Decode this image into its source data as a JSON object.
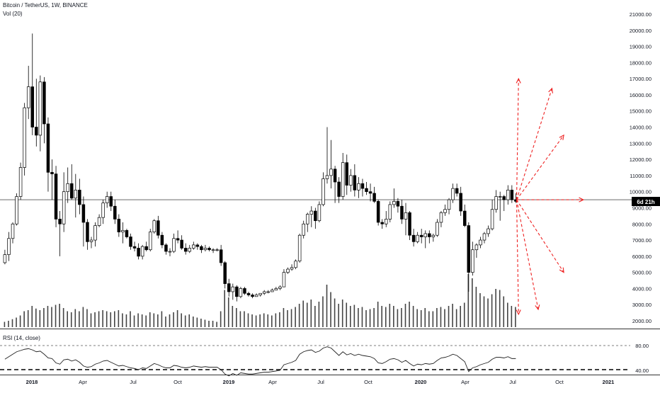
{
  "header": {
    "title": "Bitcoin / TetherUS, 1W, BINANCE",
    "volume_label": "Vol (20)"
  },
  "rsi_panel": {
    "label": "RSI (14, close)",
    "ticks": [
      "80.00",
      "40.00"
    ]
  },
  "price_badge": {
    "text": "6d 21h",
    "bg": "#000000",
    "fg": "#ffffff"
  },
  "colors": {
    "up": "#ffffff",
    "down": "#000000",
    "wick": "#000000",
    "projection": "#ee2222",
    "grid": "#9aa0a6"
  },
  "chart_data": {
    "type": "candlestick",
    "y_axis_ticks": [
      "21000.00",
      "20000.00",
      "19000.00",
      "18000.00",
      "17000.00",
      "16000.00",
      "15000.00",
      "14000.00",
      "13000.00",
      "12000.00",
      "11000.00",
      "10000.00",
      "9000.00",
      "8000.00",
      "7000.00",
      "6000.00",
      "5000.00",
      "4000.00",
      "3000.00",
      "2000.00"
    ],
    "y_range": [
      1600,
      21200
    ],
    "x_axis_labels": [
      "2018",
      "Apr",
      "Jul",
      "Oct",
      "2019",
      "Apr",
      "Jul",
      "Oct",
      "2020",
      "Apr",
      "Jul",
      "Oct",
      "2021"
    ],
    "current_price": 9500,
    "ohlc_weekly": [
      [
        5600,
        6400,
        5500,
        6100
      ],
      [
        6100,
        7500,
        5700,
        7100
      ],
      [
        7100,
        8100,
        6800,
        8000
      ],
      [
        8000,
        9900,
        7900,
        9700
      ],
      [
        9700,
        11800,
        9500,
        11500
      ],
      [
        11500,
        15500,
        11000,
        15200
      ],
      [
        15200,
        17800,
        14500,
        16500
      ],
      [
        16500,
        19800,
        13500,
        14000
      ],
      [
        14000,
        17000,
        12800,
        13500
      ],
      [
        13500,
        17200,
        12500,
        16800
      ],
      [
        16800,
        17100,
        13000,
        14200
      ],
      [
        14200,
        14600,
        10000,
        11200
      ],
      [
        11200,
        12000,
        9500,
        11100
      ],
      [
        11100,
        11600,
        7800,
        8300
      ],
      [
        8300,
        8800,
        6000,
        8000
      ],
      [
        8000,
        11200,
        7500,
        10000
      ],
      [
        10000,
        11500,
        9300,
        10500
      ],
      [
        10500,
        11700,
        9500,
        9600
      ],
      [
        9600,
        11100,
        8400,
        10100
      ],
      [
        10100,
        10800,
        8600,
        9200
      ],
      [
        9200,
        9700,
        6600,
        8100
      ],
      [
        8100,
        8300,
        6400,
        6900
      ],
      [
        6900,
        7200,
        6500,
        7000
      ],
      [
        7000,
        8100,
        6600,
        7900
      ],
      [
        7900,
        8600,
        7800,
        8400
      ],
      [
        8400,
        9500,
        8000,
        9300
      ],
      [
        9300,
        10000,
        9000,
        9700
      ],
      [
        9700,
        10000,
        8800,
        9100
      ],
      [
        9100,
        9500,
        8000,
        8300
      ],
      [
        8300,
        8600,
        7200,
        7500
      ],
      [
        7500,
        8100,
        6800,
        7600
      ],
      [
        7600,
        7700,
        7100,
        7200
      ],
      [
        7200,
        7400,
        6400,
        6600
      ],
      [
        6600,
        6900,
        6300,
        6500
      ],
      [
        6500,
        6800,
        5800,
        6000
      ],
      [
        6000,
        6700,
        5800,
        6600
      ],
      [
        6600,
        6900,
        6300,
        6400
      ],
      [
        6400,
        7700,
        6300,
        7500
      ],
      [
        7500,
        8300,
        7400,
        8200
      ],
      [
        8200,
        8500,
        7100,
        7300
      ],
      [
        7300,
        7500,
        6500,
        6700
      ],
      [
        6700,
        6800,
        6100,
        6300
      ],
      [
        6300,
        6500,
        6000,
        6300
      ],
      [
        6300,
        7400,
        6200,
        7100
      ],
      [
        7100,
        7600,
        6800,
        7000
      ],
      [
        7000,
        7300,
        6400,
        6500
      ],
      [
        6500,
        6800,
        6100,
        6300
      ],
      [
        6300,
        6700,
        6200,
        6500
      ],
      [
        6500,
        6900,
        6400,
        6700
      ],
      [
        6700,
        6800,
        6400,
        6600
      ],
      [
        6600,
        6700,
        6200,
        6400
      ],
      [
        6400,
        6700,
        6300,
        6500
      ],
      [
        6500,
        6600,
        6300,
        6400
      ],
      [
        6400,
        6500,
        6200,
        6400
      ],
      [
        6400,
        6500,
        6300,
        6400
      ],
      [
        6400,
        6700,
        5400,
        5600
      ],
      [
        5600,
        5700,
        4000,
        4300
      ],
      [
        4300,
        4600,
        3500,
        3800
      ],
      [
        3800,
        4300,
        3300,
        4100
      ],
      [
        4100,
        4200,
        3200,
        3500
      ],
      [
        3500,
        4100,
        3400,
        4000
      ],
      [
        4000,
        4100,
        3600,
        3700
      ],
      [
        3700,
        3800,
        3500,
        3600
      ],
      [
        3600,
        3700,
        3400,
        3500
      ],
      [
        3500,
        3700,
        3500,
        3600
      ],
      [
        3600,
        3700,
        3500,
        3700
      ],
      [
        3700,
        3900,
        3600,
        3800
      ],
      [
        3800,
        3900,
        3700,
        3800
      ],
      [
        3800,
        4000,
        3800,
        3900
      ],
      [
        3900,
        4100,
        3900,
        4000
      ],
      [
        4000,
        4200,
        3900,
        4100
      ],
      [
        4100,
        5200,
        4100,
        5000
      ],
      [
        5000,
        5300,
        4900,
        5200
      ],
      [
        5200,
        5500,
        5100,
        5300
      ],
      [
        5300,
        5800,
        5200,
        5700
      ],
      [
        5700,
        7400,
        5600,
        7300
      ],
      [
        7300,
        8200,
        7100,
        8000
      ],
      [
        8000,
        8700,
        7500,
        8600
      ],
      [
        8600,
        9100,
        7800,
        8800
      ],
      [
        8800,
        9000,
        7700,
        8200
      ],
      [
        8200,
        9400,
        8100,
        9200
      ],
      [
        9200,
        11200,
        9100,
        10800
      ],
      [
        10800,
        14000,
        10500,
        11000
      ],
      [
        11000,
        13200,
        10200,
        11400
      ],
      [
        11400,
        11600,
        9300,
        10600
      ],
      [
        10600,
        10900,
        9300,
        9700
      ],
      [
        9700,
        12400,
        9500,
        11800
      ],
      [
        11800,
        12300,
        9800,
        10400
      ],
      [
        10400,
        11400,
        10000,
        11000
      ],
      [
        11000,
        11700,
        9700,
        10100
      ],
      [
        10100,
        10900,
        9600,
        10500
      ],
      [
        10500,
        10800,
        9700,
        10200
      ],
      [
        10200,
        10600,
        9800,
        10000
      ],
      [
        10000,
        10500,
        9400,
        9900
      ],
      [
        9900,
        10300,
        9300,
        9400
      ],
      [
        9400,
        9500,
        7900,
        8100
      ],
      [
        8100,
        8300,
        7700,
        8000
      ],
      [
        8000,
        8800,
        7800,
        8300
      ],
      [
        8300,
        9400,
        8100,
        9200
      ],
      [
        9200,
        10200,
        9000,
        9400
      ],
      [
        9400,
        9600,
        8700,
        9100
      ],
      [
        9100,
        9500,
        8000,
        8300
      ],
      [
        8300,
        9300,
        7300,
        8700
      ],
      [
        8700,
        8800,
        7000,
        7300
      ],
      [
        7300,
        7700,
        6600,
        6900
      ],
      [
        6900,
        7500,
        6800,
        7300
      ],
      [
        7300,
        7700,
        6800,
        7200
      ],
      [
        7200,
        7600,
        6500,
        7400
      ],
      [
        7400,
        7600,
        6800,
        7200
      ],
      [
        7200,
        7400,
        6900,
        7300
      ],
      [
        7300,
        8300,
        7200,
        8100
      ],
      [
        8100,
        8800,
        7800,
        8700
      ],
      [
        8700,
        9200,
        8500,
        8900
      ],
      [
        8900,
        9600,
        8600,
        9500
      ],
      [
        9500,
        10500,
        9300,
        10200
      ],
      [
        10200,
        10500,
        9700,
        9900
      ],
      [
        9900,
        10300,
        8500,
        8800
      ],
      [
        8800,
        9200,
        7800,
        7900
      ],
      [
        7900,
        8100,
        3800,
        5000
      ],
      [
        5000,
        6900,
        4800,
        6400
      ],
      [
        6400,
        6800,
        5900,
        6700
      ],
      [
        6700,
        7200,
        6500,
        7000
      ],
      [
        7000,
        7500,
        6800,
        7400
      ],
      [
        7400,
        7900,
        7200,
        7700
      ],
      [
        7700,
        9500,
        7600,
        8900
      ],
      [
        8900,
        10100,
        8700,
        9700
      ],
      [
        9700,
        10000,
        8200,
        9700
      ],
      [
        9700,
        9800,
        8800,
        9500
      ],
      [
        9500,
        10400,
        9200,
        10100
      ],
      [
        10100,
        10400,
        9300,
        9500
      ],
      [
        9500,
        9900,
        9300,
        9400
      ]
    ],
    "volume_weekly": [
      0.1,
      0.12,
      0.15,
      0.18,
      0.22,
      0.3,
      0.32,
      0.4,
      0.35,
      0.32,
      0.36,
      0.4,
      0.38,
      0.42,
      0.44,
      0.36,
      0.3,
      0.28,
      0.34,
      0.3,
      0.38,
      0.34,
      0.26,
      0.28,
      0.3,
      0.32,
      0.3,
      0.28,
      0.3,
      0.32,
      0.26,
      0.24,
      0.3,
      0.22,
      0.26,
      0.24,
      0.22,
      0.28,
      0.26,
      0.24,
      0.3,
      0.2,
      0.24,
      0.28,
      0.32,
      0.26,
      0.22,
      0.24,
      0.2,
      0.18,
      0.16,
      0.14,
      0.12,
      0.12,
      0.1,
      0.3,
      0.7,
      0.56,
      0.4,
      0.36,
      0.3,
      0.3,
      0.26,
      0.24,
      0.22,
      0.24,
      0.26,
      0.24,
      0.22,
      0.26,
      0.28,
      0.36,
      0.32,
      0.34,
      0.38,
      0.44,
      0.5,
      0.46,
      0.52,
      0.4,
      0.48,
      0.58,
      0.8,
      0.66,
      0.54,
      0.44,
      0.52,
      0.46,
      0.4,
      0.42,
      0.36,
      0.38,
      0.32,
      0.34,
      0.36,
      0.48,
      0.4,
      0.38,
      0.44,
      0.4,
      0.34,
      0.36,
      0.44,
      0.48,
      0.4,
      0.34,
      0.32,
      0.36,
      0.3,
      0.3,
      0.36,
      0.38,
      0.34,
      0.4,
      0.44,
      0.34,
      0.4,
      0.46,
      1.0,
      0.92,
      0.76,
      0.64,
      0.58,
      0.54,
      0.62,
      0.72,
      0.7,
      0.58,
      0.46,
      0.4,
      0.38
    ],
    "rsi_weekly": [
      58,
      62,
      66,
      70,
      72,
      74,
      75,
      73,
      70,
      71,
      66,
      60,
      59,
      52,
      50,
      57,
      58,
      55,
      57,
      53,
      47,
      45,
      46,
      50,
      52,
      55,
      56,
      53,
      50,
      47,
      48,
      46,
      44,
      43,
      41,
      44,
      43,
      47,
      51,
      49,
      46,
      44,
      44,
      48,
      47,
      45,
      44,
      45,
      47,
      46,
      45,
      46,
      45,
      45,
      45,
      41,
      34,
      31,
      35,
      32,
      36,
      35,
      34,
      34,
      35,
      36,
      37,
      37,
      38,
      39,
      40,
      49,
      51,
      53,
      56,
      66,
      70,
      72,
      73,
      69,
      71,
      76,
      78,
      76,
      70,
      64,
      70,
      65,
      67,
      64,
      66,
      64,
      63,
      62,
      59,
      52,
      51,
      54,
      58,
      59,
      57,
      53,
      56,
      51,
      47,
      50,
      49,
      51,
      50,
      51,
      56,
      60,
      61,
      63,
      66,
      64,
      59,
      54,
      38,
      44,
      46,
      49,
      51,
      53,
      58,
      61,
      61,
      60,
      62,
      59,
      59
    ],
    "projection_arrows": [
      {
        "to": 17000,
        "weeks_ahead": 0.5
      },
      {
        "to": 16400,
        "weeks_ahead": 9
      },
      {
        "to": 13500,
        "weeks_ahead": 12
      },
      {
        "to": 9500,
        "weeks_ahead": 17
      },
      {
        "to": 5000,
        "weeks_ahead": 12
      },
      {
        "to": 2700,
        "weeks_ahead": 5.5
      },
      {
        "to": 2400,
        "weeks_ahead": 0.5
      }
    ]
  }
}
